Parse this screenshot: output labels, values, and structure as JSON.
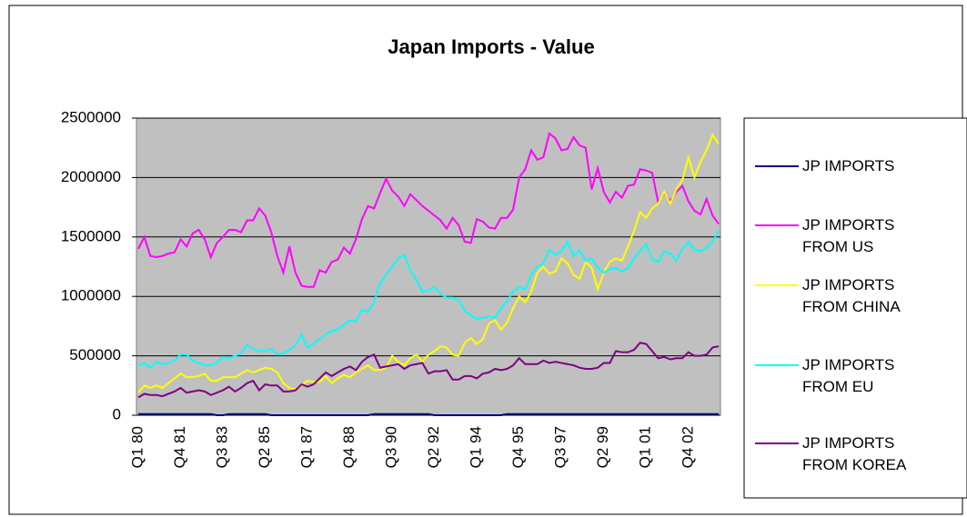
{
  "chart_data": {
    "type": "line",
    "title": "Japan Imports - Value",
    "categories": [
      "Q1 80",
      null,
      null,
      null,
      null,
      null,
      null,
      "Q4 81",
      null,
      null,
      null,
      null,
      null,
      null,
      "Q3 83",
      null,
      null,
      null,
      null,
      null,
      null,
      "Q2 85",
      null,
      null,
      null,
      null,
      null,
      null,
      "Q1 87",
      null,
      null,
      null,
      null,
      null,
      null,
      "Q4 88",
      null,
      null,
      null,
      null,
      null,
      null,
      "Q3 90",
      null,
      null,
      null,
      null,
      null,
      null,
      "Q2 92",
      null,
      null,
      null,
      null,
      null,
      null,
      "Q1 94",
      null,
      null,
      null,
      null,
      null,
      null,
      "Q4 95",
      null,
      null,
      null,
      null,
      null,
      null,
      "Q3 97",
      null,
      null,
      null,
      null,
      null,
      null,
      "Q2 99",
      null,
      null,
      null,
      null,
      null,
      null,
      "Q1 01",
      null,
      null,
      null,
      null,
      null,
      null,
      "Q4 02",
      null,
      null,
      null,
      null,
      null
    ],
    "series": [
      {
        "name": "JP IMPORTS",
        "color": "#000080",
        "values": [
          10000,
          10000,
          10000,
          10000,
          10000,
          10000,
          10000,
          10000,
          10000,
          10000,
          10000,
          10000,
          10000,
          0,
          0,
          10000,
          10000,
          10000,
          10000,
          10000,
          10000,
          10000,
          0,
          0,
          0,
          0,
          0,
          0,
          0,
          0,
          0,
          0,
          0,
          0,
          0,
          0,
          0,
          0,
          0,
          10000,
          10000,
          10000,
          10000,
          10000,
          10000,
          10000,
          10000,
          10000,
          10000,
          0,
          0,
          0,
          0,
          0,
          0,
          0,
          0,
          0,
          0,
          0,
          0,
          10000,
          10000,
          10000,
          10000,
          10000,
          10000,
          10000,
          10000,
          10000,
          10000,
          10000,
          10000,
          10000,
          10000,
          10000,
          10000,
          10000,
          10000,
          10000,
          10000,
          10000,
          10000,
          10000,
          10000,
          10000,
          10000,
          10000,
          10000,
          10000,
          10000,
          10000,
          10000,
          10000,
          10000,
          10000,
          10000
        ]
      },
      {
        "name": "JP IMPORTS FROM US",
        "color": "#ff00ff",
        "values": [
          1400000,
          1500000,
          1340000,
          1330000,
          1340000,
          1360000,
          1370000,
          1480000,
          1420000,
          1530000,
          1560000,
          1480000,
          1330000,
          1450000,
          1500000,
          1560000,
          1560000,
          1540000,
          1640000,
          1640000,
          1740000,
          1680000,
          1540000,
          1340000,
          1200000,
          1420000,
          1200000,
          1090000,
          1080000,
          1080000,
          1220000,
          1200000,
          1290000,
          1310000,
          1410000,
          1360000,
          1480000,
          1650000,
          1760000,
          1740000,
          1870000,
          1990000,
          1890000,
          1840000,
          1760000,
          1860000,
          1810000,
          1760000,
          1720000,
          1680000,
          1640000,
          1570000,
          1660000,
          1600000,
          1460000,
          1450000,
          1650000,
          1630000,
          1580000,
          1570000,
          1660000,
          1660000,
          1730000,
          2000000,
          2070000,
          2230000,
          2150000,
          2170000,
          2370000,
          2330000,
          2230000,
          2240000,
          2340000,
          2270000,
          2250000,
          1900000,
          2080000,
          1880000,
          1790000,
          1880000,
          1830000,
          1930000,
          1940000,
          2070000,
          2060000,
          2040000,
          1790000,
          1870000,
          1800000,
          1880000,
          1930000,
          1800000,
          1720000,
          1690000,
          1820000,
          1680000,
          1610000
        ]
      },
      {
        "name": "JP IMPORTS FROM CHINA",
        "color": "#ffff00",
        "values": [
          190000,
          250000,
          230000,
          250000,
          230000,
          270000,
          310000,
          350000,
          320000,
          320000,
          330000,
          350000,
          290000,
          290000,
          320000,
          320000,
          320000,
          350000,
          380000,
          360000,
          380000,
          400000,
          390000,
          360000,
          270000,
          230000,
          220000,
          250000,
          290000,
          280000,
          280000,
          330000,
          270000,
          310000,
          340000,
          320000,
          360000,
          390000,
          420000,
          380000,
          380000,
          400000,
          500000,
          450000,
          420000,
          480000,
          510000,
          450000,
          510000,
          540000,
          580000,
          570000,
          510000,
          500000,
          610000,
          650000,
          600000,
          640000,
          770000,
          800000,
          720000,
          780000,
          900000,
          1000000,
          950000,
          1040000,
          1200000,
          1250000,
          1190000,
          1210000,
          1320000,
          1280000,
          1180000,
          1150000,
          1290000,
          1240000,
          1060000,
          1200000,
          1290000,
          1320000,
          1300000,
          1420000,
          1550000,
          1710000,
          1660000,
          1740000,
          1780000,
          1880000,
          1780000,
          1900000,
          1980000,
          2170000,
          2000000,
          2130000,
          2230000,
          2360000,
          2280000
        ]
      },
      {
        "name": "JP IMPORTS FROM EU",
        "color": "#00ffff",
        "values": [
          420000,
          440000,
          400000,
          450000,
          430000,
          440000,
          460000,
          510000,
          510000,
          460000,
          440000,
          420000,
          420000,
          440000,
          490000,
          480000,
          500000,
          520000,
          590000,
          560000,
          540000,
          540000,
          560000,
          510000,
          520000,
          550000,
          590000,
          680000,
          570000,
          600000,
          640000,
          680000,
          710000,
          720000,
          760000,
          800000,
          790000,
          890000,
          870000,
          950000,
          1110000,
          1180000,
          1250000,
          1320000,
          1350000,
          1220000,
          1140000,
          1040000,
          1050000,
          1080000,
          1020000,
          990000,
          990000,
          970000,
          880000,
          840000,
          810000,
          820000,
          830000,
          820000,
          900000,
          960000,
          1040000,
          1080000,
          1060000,
          1180000,
          1250000,
          1280000,
          1390000,
          1350000,
          1380000,
          1460000,
          1340000,
          1390000,
          1300000,
          1320000,
          1240000,
          1200000,
          1230000,
          1240000,
          1210000,
          1240000,
          1320000,
          1380000,
          1440000,
          1310000,
          1290000,
          1380000,
          1360000,
          1300000,
          1400000,
          1460000,
          1390000,
          1380000,
          1410000,
          1460000,
          1550000
        ]
      },
      {
        "name": "JP IMPORTS FROM KOREA",
        "color": "#800080",
        "values": [
          150000,
          180000,
          170000,
          170000,
          160000,
          180000,
          200000,
          230000,
          190000,
          200000,
          210000,
          200000,
          170000,
          190000,
          210000,
          240000,
          200000,
          230000,
          270000,
          290000,
          210000,
          260000,
          250000,
          250000,
          200000,
          200000,
          210000,
          260000,
          240000,
          260000,
          310000,
          360000,
          330000,
          360000,
          390000,
          410000,
          380000,
          450000,
          490000,
          510000,
          400000,
          410000,
          420000,
          430000,
          390000,
          420000,
          430000,
          440000,
          350000,
          370000,
          370000,
          380000,
          300000,
          300000,
          330000,
          330000,
          310000,
          350000,
          360000,
          390000,
          380000,
          390000,
          420000,
          480000,
          430000,
          430000,
          430000,
          460000,
          440000,
          450000,
          440000,
          430000,
          420000,
          400000,
          390000,
          390000,
          400000,
          440000,
          440000,
          540000,
          530000,
          530000,
          550000,
          610000,
          600000,
          540000,
          480000,
          490000,
          470000,
          480000,
          480000,
          530000,
          500000,
          500000,
          510000,
          570000,
          580000
        ]
      }
    ],
    "ylim": [
      0,
      2500000
    ],
    "yticks": [
      0,
      500000,
      1000000,
      1500000,
      2000000,
      2500000
    ],
    "grid": true,
    "legend": "right"
  }
}
